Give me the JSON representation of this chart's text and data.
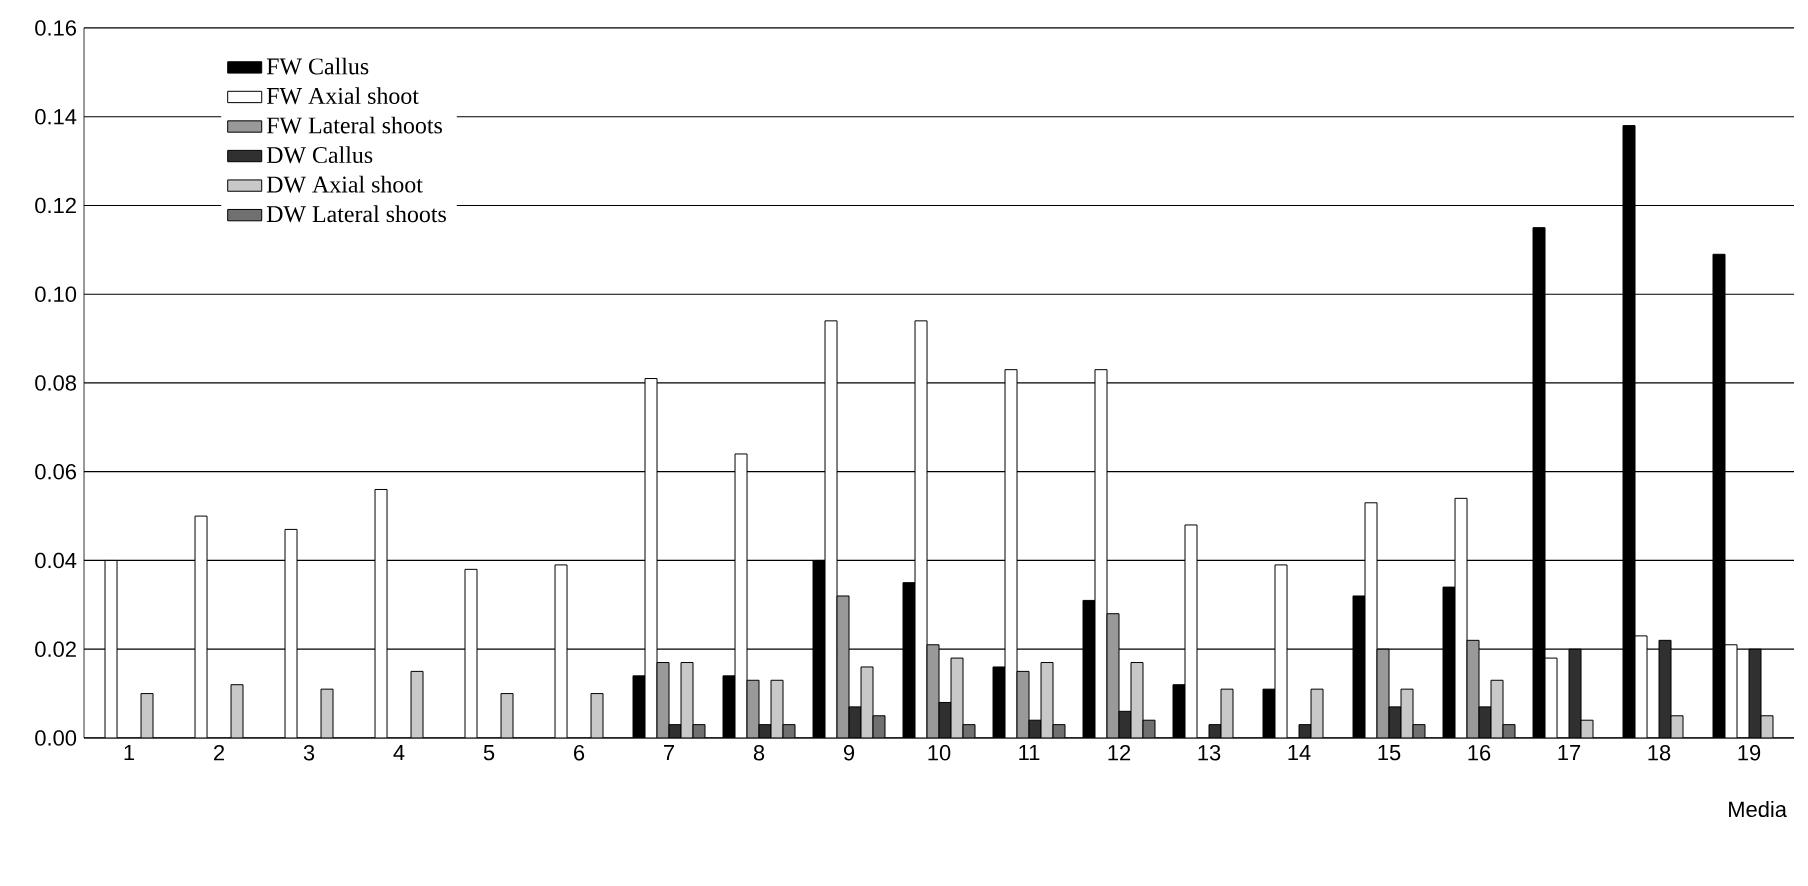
{
  "chart_data": {
    "type": "bar",
    "xlabel": "Media",
    "categories": [
      "1",
      "2",
      "3",
      "4",
      "5",
      "6",
      "7",
      "8",
      "9",
      "10",
      "11",
      "12",
      "13",
      "14",
      "15",
      "16",
      "17",
      "18",
      "19"
    ],
    "series": [
      {
        "name": "FW Callus",
        "color": "#000000",
        "values": [
          null,
          null,
          null,
          null,
          null,
          null,
          0.014,
          0.014,
          0.04,
          0.035,
          0.016,
          0.031,
          0.012,
          0.011,
          0.032,
          0.034,
          0.115,
          0.138,
          0.109
        ]
      },
      {
        "name": "FW Axial shoot",
        "color": "#ffffff",
        "values": [
          0.04,
          0.05,
          0.047,
          0.056,
          0.038,
          0.039,
          0.081,
          0.064,
          0.094,
          0.094,
          0.083,
          0.083,
          0.048,
          0.039,
          0.053,
          0.054,
          0.018,
          0.023,
          0.021
        ]
      },
      {
        "name": "FW Lateral shoots",
        "color": "#999999",
        "values": [
          null,
          null,
          null,
          null,
          null,
          null,
          0.017,
          0.013,
          0.032,
          0.021,
          0.015,
          0.028,
          null,
          null,
          0.02,
          0.022,
          null,
          null,
          null
        ]
      },
      {
        "name": "DW Callus",
        "color": "#303030",
        "values": [
          null,
          null,
          null,
          null,
          null,
          null,
          0.003,
          0.003,
          0.007,
          0.008,
          0.004,
          0.006,
          0.003,
          0.003,
          0.007,
          0.007,
          0.02,
          0.022,
          0.02
        ]
      },
      {
        "name": "DW Axial shoot",
        "color": "#c8c8c8",
        "values": [
          0.01,
          0.012,
          0.011,
          0.015,
          0.01,
          0.01,
          0.017,
          0.013,
          0.016,
          0.018,
          0.017,
          0.017,
          0.011,
          0.011,
          0.011,
          0.013,
          0.004,
          0.005,
          0.005
        ]
      },
      {
        "name": "DW Lateral shoots",
        "color": "#707070",
        "values": [
          null,
          null,
          null,
          null,
          null,
          null,
          0.003,
          0.003,
          0.005,
          0.003,
          0.003,
          0.004,
          null,
          null,
          0.003,
          0.003,
          null,
          null,
          null
        ]
      }
    ],
    "ylim": [
      0,
      0.16
    ],
    "yticks": [
      {
        "value": 0,
        "label": "0.00"
      },
      {
        "value": 0.02,
        "label": "0.02"
      },
      {
        "value": 0.04,
        "label": "0.04"
      },
      {
        "value": 0.06,
        "label": "0.06"
      },
      {
        "value": 0.08,
        "label": "0.08"
      },
      {
        "value": 0.1,
        "label": "0.10"
      },
      {
        "value": 0.12,
        "label": "0.12"
      },
      {
        "value": 0.14,
        "label": "0.14"
      },
      {
        "value": 0.16,
        "label": "0.16"
      }
    ],
    "grid": "y",
    "legend": "top left"
  }
}
